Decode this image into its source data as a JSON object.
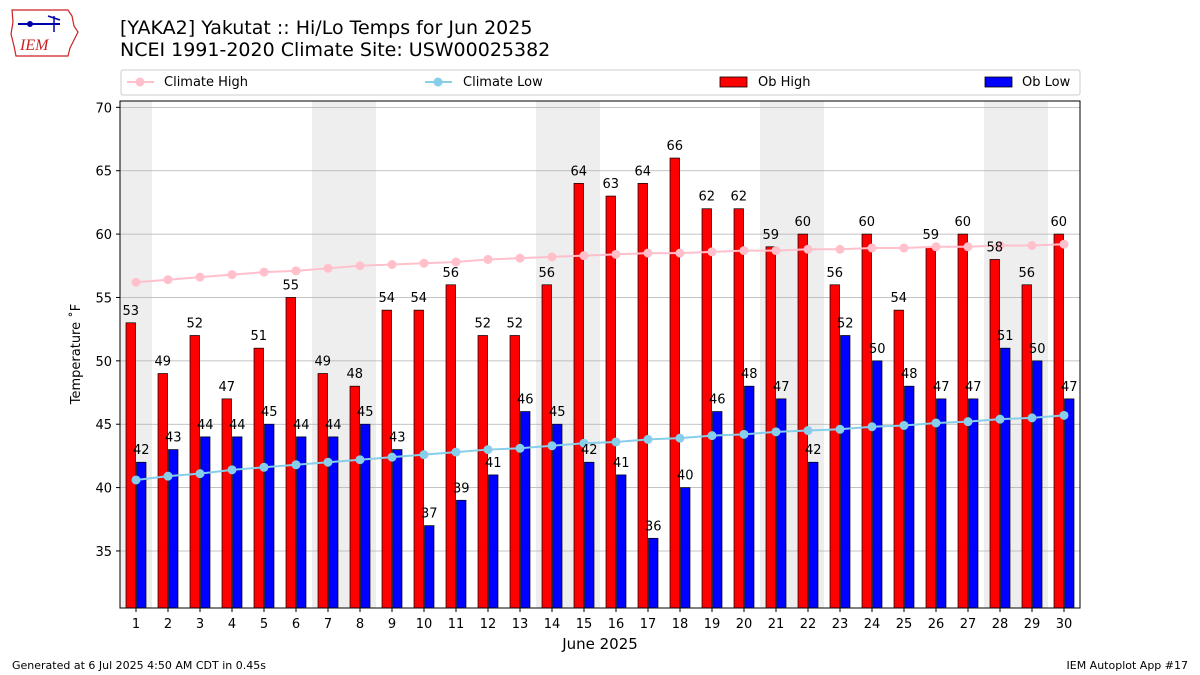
{
  "header": {
    "title_line1": "[YAKA2] Yakutat :: Hi/Lo Temps for Jun 2025",
    "title_line2": "NCEI 1991-2020 Climate Site: USW00025382",
    "logo_text": "IEM"
  },
  "footer": {
    "left": "Generated at 6 Jul 2025 4:50 AM CDT in 0.45s",
    "right": "IEM Autoplot App #17"
  },
  "colors": {
    "ob_high": "#ff0000",
    "ob_low": "#0000ff",
    "climate_high": "#ffc0cb",
    "climate_low": "#87ceeb",
    "weekend_shade": "#eeeeee",
    "grid": "#b0b0b0"
  },
  "chart_data": {
    "type": "bar",
    "xlabel": "June 2025",
    "ylabel": "Temperature ˚F",
    "ylim": [
      30.5,
      70.5
    ],
    "yticks": [
      35,
      40,
      45,
      50,
      55,
      60,
      65,
      70
    ],
    "grid": "horizontal",
    "legend_position": "top",
    "categories": [
      "1",
      "2",
      "3",
      "4",
      "5",
      "6",
      "7",
      "8",
      "9",
      "10",
      "11",
      "12",
      "13",
      "14",
      "15",
      "16",
      "17",
      "18",
      "19",
      "20",
      "21",
      "22",
      "23",
      "24",
      "25",
      "26",
      "27",
      "28",
      "29",
      "30"
    ],
    "shaded_days": [
      1,
      7,
      8,
      14,
      15,
      21,
      22,
      28,
      29
    ],
    "series": [
      {
        "name": "Ob High",
        "kind": "bar",
        "values": [
          53,
          49,
          52,
          47,
          51,
          55,
          49,
          48,
          54,
          54,
          56,
          52,
          52,
          56,
          64,
          63,
          64,
          66,
          62,
          62,
          59,
          60,
          56,
          60,
          54,
          59,
          60,
          58,
          56,
          60
        ],
        "labels": [
          "53",
          "49",
          "52",
          "47",
          "51",
          "55",
          "49",
          "48",
          "54",
          "54",
          "56",
          "52",
          "52",
          "56",
          "64",
          "63",
          "64",
          "66",
          "62",
          "62",
          "59",
          "60",
          "56",
          "60",
          "54",
          "59",
          "60",
          "58",
          "56",
          "60"
        ]
      },
      {
        "name": "Ob Low",
        "kind": "bar",
        "values": [
          42,
          43,
          44,
          44,
          45,
          44,
          44,
          45,
          43,
          37,
          39,
          41,
          46,
          45,
          42,
          41,
          36,
          40,
          46,
          48,
          47,
          42,
          52,
          50,
          48,
          47,
          47,
          51,
          50,
          47
        ],
        "labels": [
          "42",
          "43",
          "44",
          "44",
          "45",
          "44",
          "44",
          "45",
          "43",
          "37",
          "39",
          "41",
          "46",
          "45",
          "42",
          "41",
          "36",
          "40",
          "46",
          "48",
          "47",
          "42",
          "52",
          "50",
          "48",
          "47",
          "47",
          "51",
          "50",
          "47"
        ]
      },
      {
        "name": "Climate High",
        "kind": "line",
        "values": [
          56.2,
          56.4,
          56.6,
          56.8,
          57.0,
          57.1,
          57.3,
          57.5,
          57.6,
          57.7,
          57.8,
          58.0,
          58.1,
          58.2,
          58.3,
          58.4,
          58.5,
          58.5,
          58.6,
          58.7,
          58.7,
          58.8,
          58.8,
          58.9,
          58.9,
          59.0,
          59.0,
          59.1,
          59.1,
          59.2
        ]
      },
      {
        "name": "Climate Low",
        "kind": "line",
        "values": [
          40.6,
          40.9,
          41.1,
          41.4,
          41.6,
          41.8,
          42.0,
          42.2,
          42.4,
          42.6,
          42.8,
          43.0,
          43.1,
          43.3,
          43.5,
          43.6,
          43.8,
          43.9,
          44.1,
          44.2,
          44.4,
          44.5,
          44.6,
          44.8,
          44.9,
          45.1,
          45.2,
          45.4,
          45.5,
          45.7
        ]
      }
    ]
  }
}
